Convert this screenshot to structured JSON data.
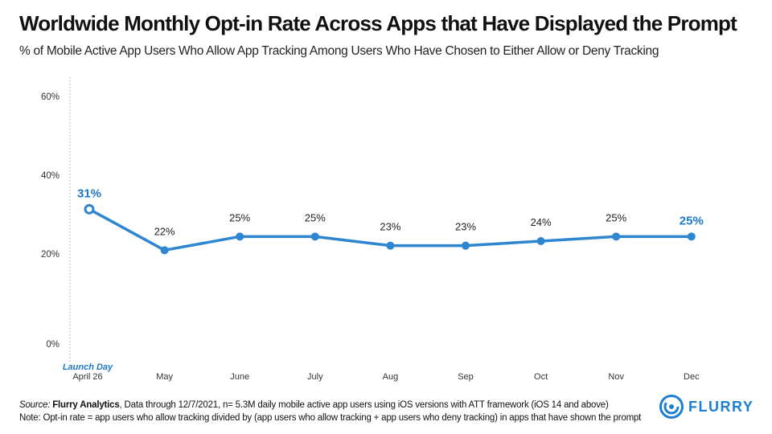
{
  "colors": {
    "line": "#2f86d0",
    "accent": "#1e78c8",
    "axis": "#999999"
  },
  "chart_data": {
    "type": "line",
    "title": "Worldwide Monthly Opt-in Rate Across Apps that Have Displayed the Prompt",
    "subtitle": "% of Mobile Active App Users Who Allow App Tracking Among Users Who Have Chosen to Either Allow or Deny Tracking",
    "categories": [
      "April 26",
      "May",
      "June",
      "July",
      "Aug",
      "Sep",
      "Oct",
      "Nov",
      "Dec"
    ],
    "values": [
      31,
      22,
      25,
      25,
      23,
      23,
      24,
      25,
      25
    ],
    "data_labels": [
      "31%",
      "22%",
      "25%",
      "25%",
      "23%",
      "23%",
      "24%",
      "25%",
      "25%"
    ],
    "y_ticks": [
      "60%",
      "40%",
      "20%",
      "0%"
    ],
    "ylim": [
      0,
      60
    ],
    "annotation": "Launch Day",
    "grid": false
  },
  "footer": {
    "source_prefix": "Source: ",
    "source_name": "Flurry Analytics",
    "source_rest": ", Data through 12/7/2021, n= 5.3M daily mobile active app users using iOS versions with ATT framework (iOS 14 and above)",
    "note": "Note: Opt-in rate = app users who allow tracking divided by (app users who allow tracking + app users who deny tracking) in apps that have shown the prompt"
  },
  "logo": {
    "text": "FLURRY",
    "icon": "flurry-swirl-icon"
  }
}
